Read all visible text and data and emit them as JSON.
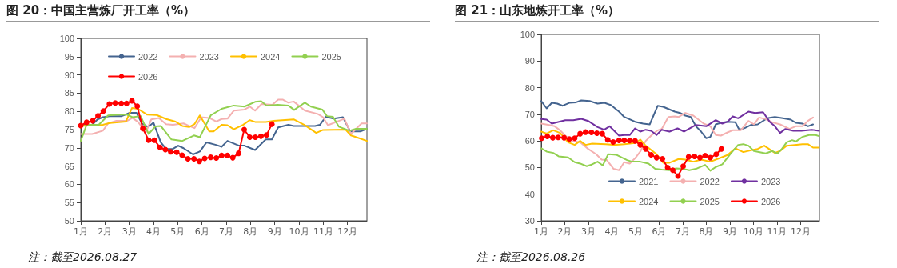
{
  "chart_data": [
    {
      "type": "line",
      "title": "图 20：中国主营炼厂开工率（%）",
      "annotations": [
        "注：截至2026.08.27"
      ],
      "xlim": [
        1,
        12.8
      ],
      "xticks": [
        {
          "value": 1,
          "label": "1月"
        },
        {
          "value": 2,
          "label": "2月"
        },
        {
          "value": 3,
          "label": "3月"
        },
        {
          "value": 4,
          "label": "4月"
        },
        {
          "value": 5,
          "label": "5月"
        },
        {
          "value": 6,
          "label": "6月"
        },
        {
          "value": 7,
          "label": "7月"
        },
        {
          "value": 8,
          "label": "8月"
        },
        {
          "value": 9,
          "label": "9月"
        },
        {
          "value": 10,
          "label": "10月"
        },
        {
          "value": 11,
          "label": "11月"
        },
        {
          "value": 12,
          "label": "12月"
        }
      ],
      "ylim": [
        50,
        100
      ],
      "yticks": [
        50,
        55,
        60,
        65,
        70,
        75,
        80,
        85,
        90,
        95,
        100
      ],
      "grid": false,
      "legend": "top",
      "series": [
        {
          "name": "2022",
          "color": "#44648f",
          "marker": "none",
          "x": [
            1,
            1.47,
            1.69,
            1.91,
            2.24,
            2.69,
            3.02,
            3.3,
            3.52,
            3.78,
            4,
            4.3,
            4.52,
            4.8,
            5.02,
            5.24,
            5.63,
            5.91,
            6.19,
            6.58,
            6.81,
            7.05,
            7.53,
            7.75,
            8.19,
            8.63,
            8.88,
            9.14,
            9.56,
            9.78,
            10.66,
            10.86,
            11.1,
            11.43,
            11.81,
            12.11,
            12.53,
            12.8
          ],
          "values": [
            76.3,
            76.3,
            77.8,
            78.4,
            78.7,
            78.7,
            79.6,
            79.6,
            76.7,
            75.7,
            76.9,
            71.5,
            69.7,
            69.7,
            70.6,
            69.9,
            68.2,
            69,
            71.5,
            70.8,
            70.3,
            71.9,
            70.6,
            70.6,
            69.4,
            72.3,
            72.3,
            75.6,
            76.3,
            76,
            76,
            76.3,
            78.5,
            78,
            78.4,
            74.5,
            74.5,
            75.2
          ]
        },
        {
          "name": "2023",
          "color": "#f4b0b0",
          "marker": "none",
          "x": [
            1,
            1.47,
            1.91,
            2.13,
            2.47,
            2.91,
            3.13,
            3.36,
            3.69,
            3.91,
            4.22,
            4.52,
            4.8,
            5.24,
            5.47,
            5.69,
            5.97,
            6.3,
            6.59,
            6.81,
            7.05,
            7.31,
            7.75,
            7.97,
            8.19,
            8.46,
            8.9,
            9.14,
            9.34,
            9.56,
            9.78,
            10.24,
            10.77,
            10.99,
            11.19,
            11.54,
            11.87,
            12.14,
            12.58,
            12.8
          ],
          "values": [
            73.8,
            73.8,
            74.7,
            76.7,
            77.4,
            77.4,
            78.2,
            77.1,
            74.3,
            77.8,
            78.2,
            76.5,
            76.3,
            76.7,
            76,
            75.4,
            78.4,
            78.2,
            77.2,
            77.9,
            78,
            80.2,
            80.5,
            81.3,
            80.2,
            82,
            81.8,
            83.2,
            83.2,
            82.4,
            82.7,
            80.2,
            79.3,
            78.4,
            76.2,
            77.1,
            78,
            73.8,
            76.7,
            76.7
          ]
        },
        {
          "name": "2024",
          "color": "#ffc000",
          "marker": "none",
          "x": [
            1,
            1.47,
            1.91,
            2.19,
            2.86,
            3.11,
            3.36,
            3.74,
            4.13,
            4.52,
            4.91,
            5.19,
            5.47,
            5.69,
            5.91,
            6.3,
            6.48,
            6.81,
            7.05,
            7.31,
            7.69,
            7.97,
            8.19,
            8.63,
            8.96,
            9.78,
            10.22,
            10.71,
            10.99,
            11.92,
            12.14,
            12.41,
            12.8
          ],
          "values": [
            76,
            76.2,
            76.3,
            76.8,
            77.2,
            80.9,
            80.7,
            79.1,
            79,
            77.9,
            77.2,
            76,
            75.7,
            76.5,
            78.9,
            74.5,
            74.5,
            76.3,
            76.2,
            75.1,
            76.3,
            77.6,
            77.1,
            77.1,
            77.4,
            77.8,
            76.3,
            74.1,
            74.9,
            75,
            73.4,
            72.8,
            71.9
          ]
        },
        {
          "name": "2025",
          "color": "#92d050",
          "marker": "none",
          "x": [
            1,
            1.24,
            1.74,
            2.13,
            2.58,
            2.91,
            3.13,
            3.47,
            3.8,
            4.08,
            4.3,
            4.74,
            5.19,
            5.67,
            5.91,
            6.36,
            6.81,
            7.31,
            7.75,
            8.19,
            8.44,
            8.66,
            9.12,
            9.56,
            9.8,
            10.24,
            10.49,
            10.96,
            11.15,
            11.4,
            11.64,
            12.08,
            12.35,
            12.8
          ],
          "values": [
            71.9,
            76.3,
            76.3,
            78.9,
            79.1,
            79.1,
            78.4,
            78.7,
            73.8,
            75.9,
            76,
            72.3,
            71.9,
            73.4,
            72.9,
            78.9,
            80.7,
            81.6,
            81.3,
            82.6,
            82.8,
            81.6,
            81.8,
            81.6,
            80.4,
            82.4,
            81.3,
            80.5,
            78.7,
            78.5,
            75.8,
            74.7,
            75.2,
            75.2
          ]
        },
        {
          "name": "2026",
          "color": "#ff0000",
          "marker": "circle",
          "x": [
            1,
            1.24,
            1.49,
            1.71,
            1.93,
            2.18,
            2.42,
            2.67,
            2.89,
            3.11,
            3.33,
            3.56,
            3.8,
            4.04,
            4.27,
            4.49,
            4.71,
            4.96,
            5.18,
            5.42,
            5.67,
            5.89,
            6.11,
            6.36,
            6.59,
            6.81,
            7.05,
            7.27,
            7.51,
            7.74,
            7.97,
            8.2,
            8.43,
            8.66,
            8.88
          ],
          "values": [
            76.1,
            77,
            77.4,
            78.8,
            80.1,
            82,
            82.3,
            82.2,
            82.2,
            82.9,
            81.4,
            75.3,
            72.1,
            72.1,
            70.1,
            69.5,
            68.9,
            68.8,
            68,
            67,
            67,
            66.3,
            67.1,
            67.4,
            67.2,
            67.9,
            67.9,
            67.3,
            68.5,
            75,
            72.9,
            72.9,
            73.2,
            73.5,
            76.5
          ]
        }
      ]
    },
    {
      "type": "line",
      "title": "图 21：山东地炼开工率（%）",
      "annotations": [
        "注：截至2026.08.26"
      ],
      "xlim": [
        1,
        12.8
      ],
      "xticks": [
        {
          "value": 1,
          "label": "1月"
        },
        {
          "value": 2,
          "label": "2月"
        },
        {
          "value": 3,
          "label": "3月"
        },
        {
          "value": 4,
          "label": "4月"
        },
        {
          "value": 5,
          "label": "5月"
        },
        {
          "value": 6,
          "label": "6月"
        },
        {
          "value": 7,
          "label": "7月"
        },
        {
          "value": 8,
          "label": "8月"
        },
        {
          "value": 9,
          "label": "9月"
        },
        {
          "value": 10,
          "label": "10月"
        },
        {
          "value": 11,
          "label": "11月"
        },
        {
          "value": 12,
          "label": "12月"
        }
      ],
      "ylim": [
        30,
        100
      ],
      "yticks": [
        30,
        40,
        50,
        60,
        70,
        80,
        90,
        100
      ],
      "grid": false,
      "legend": "bottom",
      "series": [
        {
          "name": "2021",
          "color": "#44648f",
          "marker": "none",
          "x": [
            1,
            1.23,
            1.45,
            1.68,
            1.91,
            2.19,
            2.48,
            2.7,
            3.05,
            3.39,
            3.68,
            3.95,
            4.3,
            4.52,
            4.98,
            5.32,
            5.6,
            5.94,
            6.17,
            6.66,
            6.89,
            7.11,
            7.34,
            7.56,
            7.78,
            8,
            8.17,
            8.4,
            8.62,
            8.9,
            9.23,
            9.4,
            9.63,
            9.9,
            10.18,
            10.58,
            10.91,
            11.25,
            11.58,
            11.8,
            12.08,
            12.31,
            12.53
          ],
          "values": [
            75,
            72.2,
            74.3,
            74,
            73.2,
            74.3,
            74.5,
            75.2,
            75,
            74,
            74.3,
            73.5,
            71,
            69,
            67.2,
            66.5,
            66.2,
            73.2,
            72.8,
            71,
            70.5,
            69.5,
            69,
            65.5,
            63.5,
            61,
            61.5,
            66.2,
            66.8,
            67.2,
            67,
            64.2,
            64.8,
            66,
            66.2,
            68.5,
            69,
            68.5,
            68,
            66.8,
            66.5,
            65.5,
            66.2
          ]
        },
        {
          "name": "2022",
          "color": "#f4b0b0",
          "marker": "none",
          "x": [
            1,
            1.34,
            1.57,
            1.8,
            2.02,
            2.31,
            2.65,
            2.99,
            3.33,
            3.56,
            3.78,
            4.07,
            4.3,
            4.52,
            4.75,
            4.98,
            5.2,
            5.43,
            5.66,
            5.94,
            6.11,
            6.39,
            6.66,
            6.83,
            7.11,
            7.45,
            7.89,
            8.17,
            8.4,
            8.62,
            8.9,
            9.12,
            9.46,
            9.79,
            10.02,
            10.24,
            10.52,
            10.8,
            11.13,
            11.53,
            11.8,
            12.08,
            12.31,
            12.53
          ],
          "values": [
            66.5,
            66,
            65.5,
            64,
            62,
            60,
            59.5,
            57,
            55,
            53,
            52.8,
            49.5,
            49,
            52,
            51.5,
            53.5,
            56,
            60,
            62,
            64,
            64.5,
            69,
            69.2,
            69,
            70.5,
            69.5,
            66.5,
            65.5,
            62.2,
            62,
            63.2,
            64,
            64,
            67.5,
            66.2,
            68.8,
            68.2,
            67,
            66.2,
            64.5,
            65.5,
            65.5,
            67.5,
            68.8
          ]
        },
        {
          "name": "2023",
          "color": "#7030a0",
          "marker": "none",
          "x": [
            1,
            1.23,
            1.45,
            2.02,
            2.36,
            2.7,
            2.99,
            3.39,
            3.67,
            3.9,
            4.3,
            4.52,
            4.75,
            4.98,
            5.2,
            5.43,
            5.66,
            5.89,
            6.11,
            6.44,
            6.78,
            7.06,
            7.56,
            8,
            8.4,
            8.68,
            8.9,
            9.12,
            9.35,
            9.79,
            10.07,
            10.41,
            10.69,
            10.91,
            11.13,
            11.36,
            11.69,
            12.03,
            12.47,
            12.78
          ],
          "values": [
            68.2,
            68,
            66.5,
            67.8,
            67.8,
            68.3,
            67.5,
            65.2,
            64.2,
            65.5,
            62,
            62.2,
            62.2,
            64.7,
            63.5,
            64.2,
            63.8,
            62.2,
            64.2,
            63.5,
            64.7,
            63.5,
            66,
            65.5,
            67.8,
            66.5,
            67.2,
            69.2,
            68.5,
            71,
            70.5,
            70.8,
            67.2,
            65.5,
            63,
            64.5,
            63.8,
            63.8,
            64.2,
            63.8
          ]
        },
        {
          "name": "2024",
          "color": "#ffc000",
          "marker": "none",
          "x": [
            1,
            1.23,
            1.51,
            1.8,
            2.14,
            2.42,
            2.65,
            2.88,
            3.16,
            3.73,
            4.07,
            4.52,
            4.98,
            5.2,
            5.43,
            5.89,
            6.17,
            6.44,
            6.83,
            7.11,
            7.45,
            7.78,
            8.17,
            8.56,
            8.9,
            9.23,
            9.57,
            9.9,
            10.18,
            10.46,
            10.91,
            11.13,
            11.41,
            11.75,
            12.08,
            12.31,
            12.53,
            12.78
          ],
          "values": [
            63.5,
            62.8,
            64,
            63,
            59.5,
            58.5,
            60,
            58.5,
            59,
            58.8,
            58.5,
            58.8,
            59.2,
            60.5,
            58.2,
            55,
            51.8,
            51.8,
            53.2,
            53,
            52.2,
            53,
            52.2,
            53.5,
            54.7,
            57.2,
            55.8,
            56.5,
            57,
            58.2,
            55.5,
            56.2,
            58.2,
            58.5,
            58.8,
            58.8,
            57.5,
            57.5
          ]
        },
        {
          "name": "2025",
          "color": "#92d050",
          "marker": "none",
          "x": [
            1,
            1.23,
            1.51,
            1.74,
            2.14,
            2.42,
            2.65,
            2.93,
            3.16,
            3.39,
            3.61,
            3.84,
            4.18,
            4.64,
            4.86,
            5.2,
            5.55,
            5.83,
            6.11,
            6.44,
            6.72,
            7,
            7.28,
            7.56,
            7.95,
            8.17,
            8.4,
            8.68,
            9.01,
            9.35,
            9.57,
            9.79,
            10.02,
            10.52,
            10.8,
            11.02,
            11.19,
            11.41,
            11.64,
            11.8,
            12.08,
            12.36,
            12.64,
            12.78
          ],
          "values": [
            57.2,
            56,
            55.5,
            54.2,
            53.8,
            52,
            51.5,
            50.5,
            51.2,
            52.2,
            50.8,
            55,
            54.8,
            52.8,
            52.2,
            52.2,
            51.5,
            49.5,
            49.2,
            49,
            49.7,
            49.5,
            49,
            49.5,
            51,
            48.8,
            50.2,
            51.2,
            55,
            58.5,
            58.8,
            58.2,
            56.2,
            55.3,
            56.2,
            55.3,
            56.8,
            59.5,
            60.3,
            59.8,
            61.5,
            62.2,
            62.2,
            61.8
          ]
        },
        {
          "name": "2026",
          "color": "#ff0000",
          "marker": "circle",
          "x": [
            1.02,
            1.26,
            1.49,
            1.72,
            1.97,
            2.19,
            2.42,
            2.65,
            2.88,
            3.13,
            3.36,
            3.59,
            3.82,
            4.05,
            4.3,
            4.52,
            4.75,
            4.98,
            5.2,
            5.43,
            5.66,
            5.89,
            6.14,
            6.36,
            6.58,
            6.8,
            7.02,
            7.25,
            7.5,
            7.73,
            7.95,
            8.17,
            8.42,
            8.64
          ],
          "values": [
            61,
            61.7,
            61.2,
            61.3,
            61.2,
            60.7,
            61,
            62.7,
            63.3,
            63.2,
            62.9,
            62.7,
            60.4,
            59.6,
            60.2,
            60.2,
            60.1,
            60,
            58.5,
            57,
            54.8,
            53.7,
            53.3,
            50,
            49,
            46.8,
            50.5,
            54,
            54.2,
            53.7,
            54.5,
            53.7,
            55,
            57
          ]
        }
      ]
    }
  ]
}
